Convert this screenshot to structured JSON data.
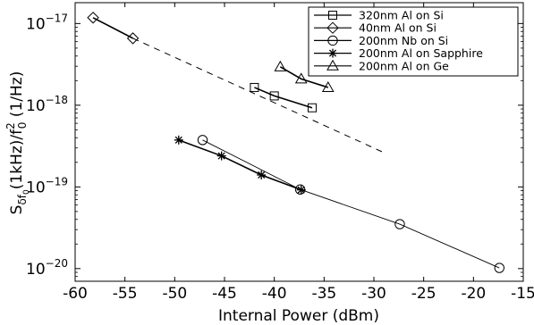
{
  "chart_data": {
    "type": "line",
    "xlabel": "Internal Power (dBm)",
    "ylabel_parts": {
      "base": "S",
      "sub": "δf",
      "subsub": "0",
      "mid": "(1kHz)/f",
      "sup": "2",
      "sub2": "0",
      "unit": "(1/Hz)"
    },
    "xlim": [
      -60,
      -15
    ],
    "ylim": [
      7e-21,
      1.8e-17
    ],
    "yscale": "log",
    "xticks": [
      -60,
      -55,
      -50,
      -45,
      -40,
      -35,
      -30,
      -25,
      -20,
      -15
    ],
    "yticks": [
      {
        "value": 1e-20,
        "base": "10",
        "exp": "−20"
      },
      {
        "value": 1e-19,
        "base": "10",
        "exp": "−19"
      },
      {
        "value": 1e-18,
        "base": "10",
        "exp": "−18"
      },
      {
        "value": 1e-17,
        "base": "10",
        "exp": "−17"
      }
    ],
    "legend_position": "top-right",
    "series": [
      {
        "name": "320nm Al on Si",
        "marker": "square",
        "stroke_width": 1.6,
        "x": [
          -42,
          -40,
          -36.2
        ],
        "y": [
          1.65e-18,
          1.3e-18,
          9.3e-19
        ]
      },
      {
        "name": "40nm Al on Si",
        "marker": "diamond",
        "stroke_width": 1.6,
        "x": [
          -58.2,
          -54.2
        ],
        "y": [
          1.18e-17,
          6.6e-18
        ]
      },
      {
        "name": "200nm Nb on Si",
        "marker": "circle",
        "stroke_width": 0.9,
        "x": [
          -47.2,
          -37.4,
          -27.4,
          -17.4
        ],
        "y": [
          3.75e-19,
          9.3e-20,
          3.5e-20,
          1.02e-20
        ]
      },
      {
        "name": "200nm Al on Sapphire",
        "marker": "asterisk",
        "stroke_width": 1.6,
        "x": [
          -49.6,
          -45.3,
          -41.3,
          -37.3
        ],
        "y": [
          3.75e-19,
          2.4e-19,
          1.4e-19,
          9.2e-20
        ]
      },
      {
        "name": "200nm Al on Ge",
        "marker": "triangle",
        "stroke_width": 1.6,
        "x": [
          -39.4,
          -37.3,
          -34.6
        ],
        "y": [
          2.95e-18,
          2.1e-18,
          1.65e-18
        ]
      }
    ],
    "reference_line": {
      "style": "dashed",
      "x": [
        -54.2,
        -29.2
      ],
      "y": [
        6.6e-18,
        2.7e-19
      ]
    }
  }
}
